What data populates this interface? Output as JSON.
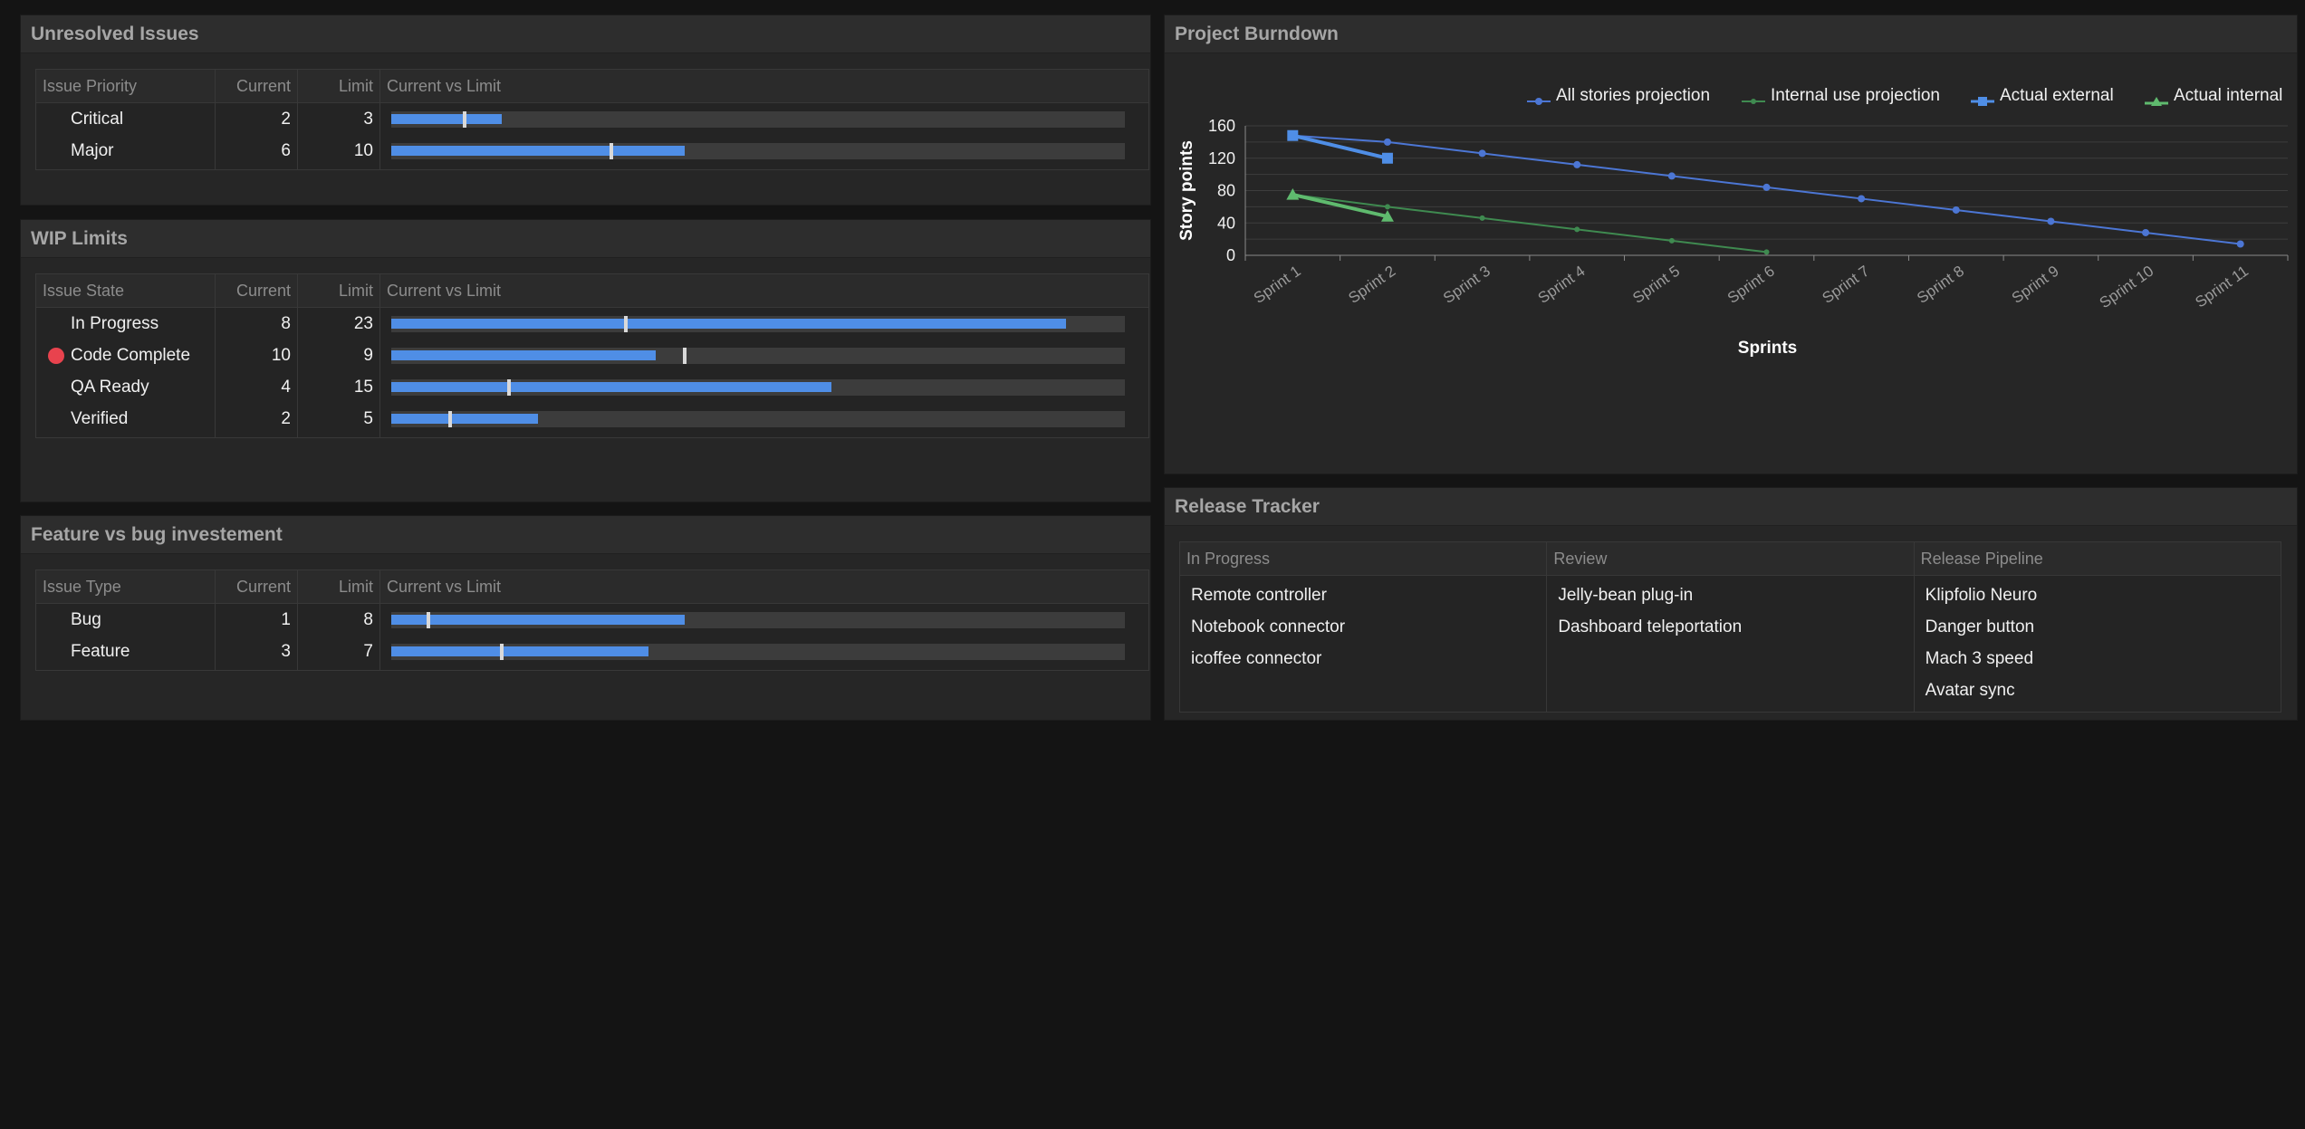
{
  "unresolved": {
    "title": "Unresolved Issues",
    "headers": [
      "Issue Priority",
      "Current",
      "Limit",
      "Current vs Limit"
    ],
    "rows": [
      {
        "name": "Critical",
        "current": 2,
        "limit": 3,
        "current_pct": 15,
        "limit_pct": 10,
        "alert": false
      },
      {
        "name": "Major",
        "current": 6,
        "limit": 10,
        "current_pct": 40,
        "limit_pct": 30,
        "alert": false
      }
    ]
  },
  "wip": {
    "title": "WIP Limits",
    "headers": [
      "Issue State",
      "Current",
      "Limit",
      "Current vs Limit"
    ],
    "rows": [
      {
        "name": "In Progress",
        "current": 8,
        "limit": 23,
        "current_pct": 92,
        "limit_pct": 32,
        "alert": false
      },
      {
        "name": "Code Complete",
        "current": 10,
        "limit": 9,
        "current_pct": 36,
        "limit_pct": 40,
        "alert": true
      },
      {
        "name": "QA Ready",
        "current": 4,
        "limit": 15,
        "current_pct": 60,
        "limit_pct": 16,
        "alert": false
      },
      {
        "name": "Verified",
        "current": 2,
        "limit": 5,
        "current_pct": 20,
        "limit_pct": 8,
        "alert": false
      }
    ]
  },
  "feature_bug": {
    "title": "Feature vs bug investement",
    "headers": [
      "Issue Type",
      "Current",
      "Limit",
      "Current vs Limit"
    ],
    "rows": [
      {
        "name": "Bug",
        "current": 1,
        "limit": 8,
        "current_pct": 40,
        "limit_pct": 5,
        "alert": false
      },
      {
        "name": "Feature",
        "current": 3,
        "limit": 7,
        "current_pct": 35,
        "limit_pct": 15,
        "alert": false
      }
    ]
  },
  "burndown": {
    "title": "Project Burndown",
    "legend_colors": [
      "#4c76d4",
      "#3f8a50",
      "#4f8ee6",
      "#5fba6e"
    ]
  },
  "chart_data": {
    "type": "line",
    "title": "",
    "xlabel": "Sprints",
    "ylabel": "Story points",
    "x": [
      "Sprint 1",
      "Sprint 2",
      "Sprint 3",
      "Sprint 4",
      "Sprint 5",
      "Sprint 6",
      "Sprint 7",
      "Sprint 8",
      "Sprint 9",
      "Sprint 10",
      "Sprint 11"
    ],
    "yticks": [
      0,
      40,
      80,
      120,
      160
    ],
    "ylim": [
      0,
      160
    ],
    "grid": true,
    "legend_position": "top-right",
    "series": [
      {
        "name": "All stories projection",
        "color": "#4c76d4",
        "marker": "circle",
        "values": [
          148,
          140,
          126,
          112,
          98,
          84,
          70,
          56,
          42,
          28,
          14
        ]
      },
      {
        "name": "Internal use projection",
        "color": "#3f8a50",
        "marker": "circle",
        "values": [
          75,
          60,
          46,
          32,
          18,
          4,
          null,
          null,
          null,
          null,
          null
        ]
      },
      {
        "name": "Actual external",
        "color": "#4f8ee6",
        "marker": "square",
        "values": [
          148,
          120,
          null,
          null,
          null,
          null,
          null,
          null,
          null,
          null,
          null
        ]
      },
      {
        "name": "Actual internal",
        "color": "#5fba6e",
        "marker": "triangle",
        "values": [
          75,
          48,
          null,
          null,
          null,
          null,
          null,
          null,
          null,
          null,
          null
        ]
      }
    ]
  },
  "release": {
    "title": "Release Tracker",
    "columns": [
      {
        "header": "In Progress",
        "items": [
          "Remote controller",
          "Notebook connector",
          "icoffee connector"
        ]
      },
      {
        "header": "Review",
        "items": [
          "Jelly-bean plug-in",
          "Dashboard teleportation"
        ]
      },
      {
        "header": "Release Pipeline",
        "items": [
          "Klipfolio Neuro",
          "Danger button",
          "Mach 3 speed",
          "Avatar sync"
        ]
      }
    ]
  }
}
